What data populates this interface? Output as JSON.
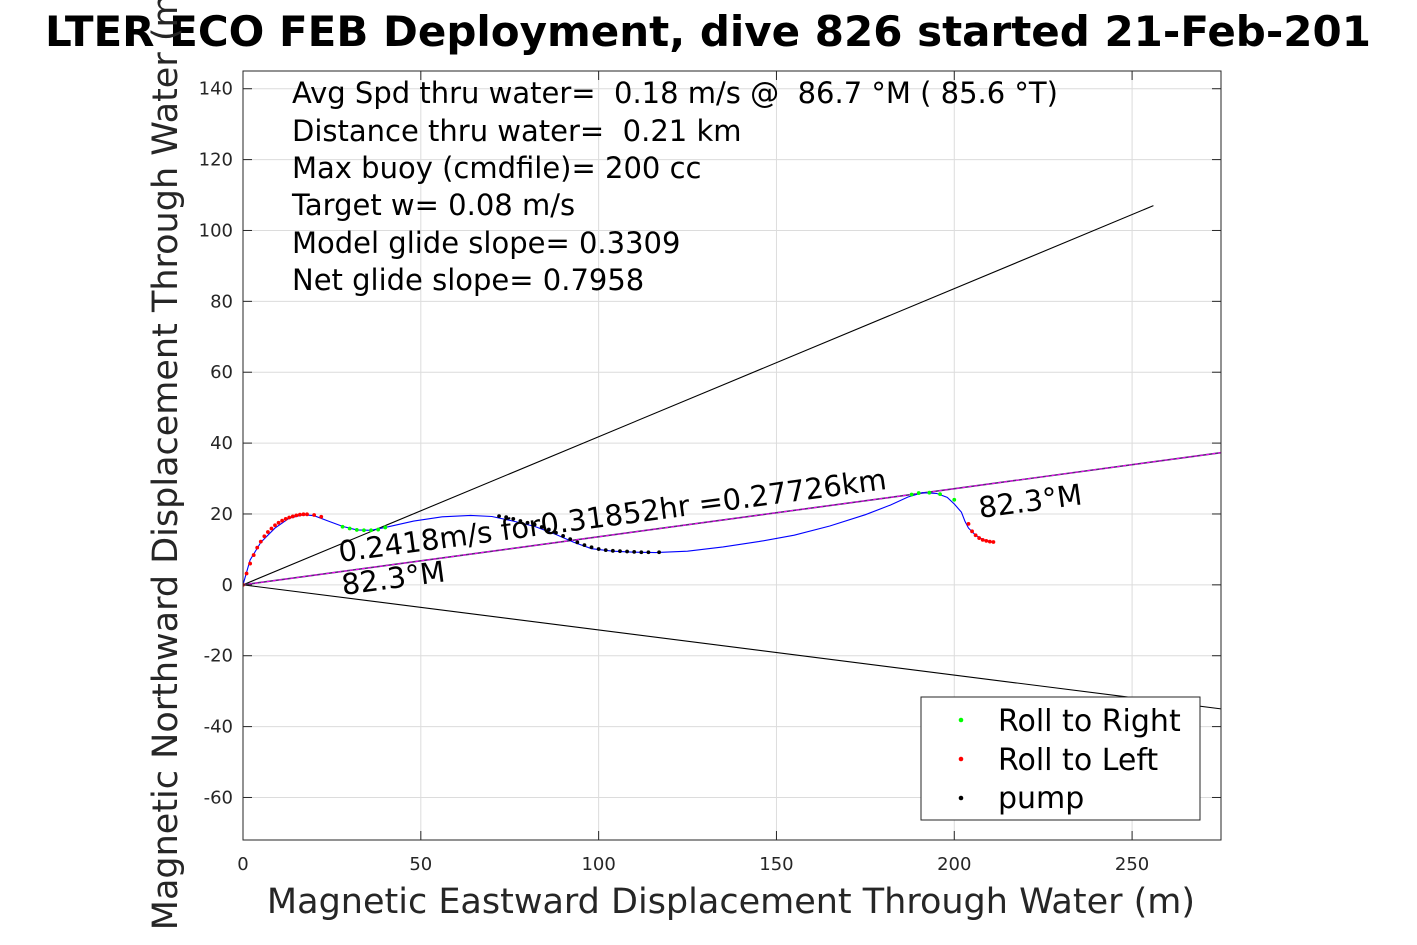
{
  "chart_data": {
    "type": "line",
    "title": "...LTER ECO FEB Deployment, dive 826 started 21-Feb-201...",
    "title_visible": "LTER ECO FEB Deployment, dive 826 started 21-Feb-201",
    "xlabel": "Magnetic Eastward Displacement Through Water (m)",
    "ylabel": "Magnetic Northward Displacement Through Water (m)",
    "xlim": [
      0,
      275
    ],
    "ylim": [
      -72,
      145
    ],
    "xticks": [
      0,
      50,
      100,
      150,
      200,
      250
    ],
    "yticks": [
      -60,
      -40,
      -20,
      0,
      20,
      40,
      60,
      80,
      100,
      120,
      140
    ],
    "grid": true,
    "stats": [
      "Avg Spd thru water=  0.18 m/s @  86.7 °M ( 85.6 °T)",
      "Distance thru water=  0.21 km",
      "Max buoy (cmdfile)= 200 cc",
      "Target w= 0.08 m/s",
      "Model glide slope= 0.3309",
      "Net glide slope= 0.7958"
    ],
    "annotations": {
      "speed": "0.2418m/s for0.31852hr =0.27726km",
      "heading_lower": "82.3°M",
      "heading_upper": "82.3°M"
    },
    "reference_lines": [
      {
        "name": "upper-cone",
        "x": [
          0,
          256
        ],
        "y": [
          0,
          107
        ]
      },
      {
        "name": "lower-cone",
        "x": [
          0,
          275
        ],
        "y": [
          0,
          -35
        ]
      },
      {
        "name": "heading-line",
        "x": [
          0,
          275
        ],
        "y": [
          0,
          37.3
        ]
      }
    ],
    "series": [
      {
        "name": "track",
        "color": "#0000ff",
        "x": [
          0,
          2,
          5,
          9,
          13,
          17,
          20,
          24,
          28,
          32,
          36,
          40,
          48,
          56,
          64,
          70,
          76,
          82,
          88,
          93,
          98,
          104,
          110,
          116,
          125,
          135,
          145,
          155,
          165,
          175,
          182,
          187,
          191,
          195,
          198,
          200,
          202,
          203,
          204,
          206,
          208,
          210,
          211
        ],
        "y": [
          0,
          7,
          12,
          16,
          18.8,
          19.8,
          19.5,
          18,
          16.5,
          15.5,
          15.4,
          16.2,
          18,
          19.2,
          19.6,
          19.3,
          18,
          16.5,
          14.2,
          12,
          10.2,
          9.5,
          9.2,
          9.1,
          9.5,
          10.7,
          12.2,
          14,
          16.6,
          19.8,
          22.5,
          24.8,
          26,
          25.8,
          24.7,
          22.8,
          20.5,
          18,
          16,
          14,
          12.8,
          12.3,
          12.1
        ]
      },
      {
        "name": "Roll to Right",
        "color": "#00ff00",
        "x": [
          28,
          30,
          32,
          34,
          36,
          38,
          40,
          188,
          190,
          193,
          196,
          200
        ],
        "y": [
          16.4,
          15.9,
          15.5,
          15.4,
          15.4,
          15.6,
          16.2,
          25.5,
          25.9,
          26.0,
          25.6,
          24.0
        ]
      },
      {
        "name": "Roll to Left",
        "color": "#ff0000",
        "x": [
          0,
          1,
          2,
          3,
          4,
          5,
          6,
          7,
          8,
          9,
          10,
          11,
          12,
          13,
          14,
          15,
          16,
          17,
          18,
          20,
          22,
          204,
          205,
          206,
          207,
          208,
          209,
          210,
          211
        ],
        "y": [
          0,
          3.2,
          6,
          8.4,
          10.5,
          12.2,
          13.7,
          14.9,
          15.9,
          16.8,
          17.5,
          18.1,
          18.6,
          19.0,
          19.3,
          19.6,
          19.8,
          19.9,
          19.9,
          19.7,
          19.2,
          17.2,
          15.1,
          14.0,
          13.2,
          12.7,
          12.4,
          12.2,
          12.1
        ]
      },
      {
        "name": "pump",
        "color": "#000000",
        "x": [
          72,
          74,
          76,
          78,
          80,
          82,
          84,
          86,
          88,
          90,
          92,
          94,
          96,
          98,
          100,
          102,
          104,
          106,
          108,
          110,
          112,
          114,
          117
        ],
        "y": [
          19.4,
          19.1,
          18.6,
          18.0,
          17.5,
          17.0,
          16.3,
          15.6,
          14.7,
          13.8,
          12.9,
          12.0,
          11.2,
          10.6,
          10.1,
          9.8,
          9.6,
          9.5,
          9.4,
          9.3,
          9.2,
          9.2,
          9.2
        ]
      }
    ],
    "legend": {
      "position": "bottom-right",
      "entries": [
        {
          "label": "Roll to Right",
          "color": "#00ff00"
        },
        {
          "label": "Roll to Left",
          "color": "#ff0000"
        },
        {
          "label": "pump",
          "color": "#000000"
        }
      ]
    }
  }
}
